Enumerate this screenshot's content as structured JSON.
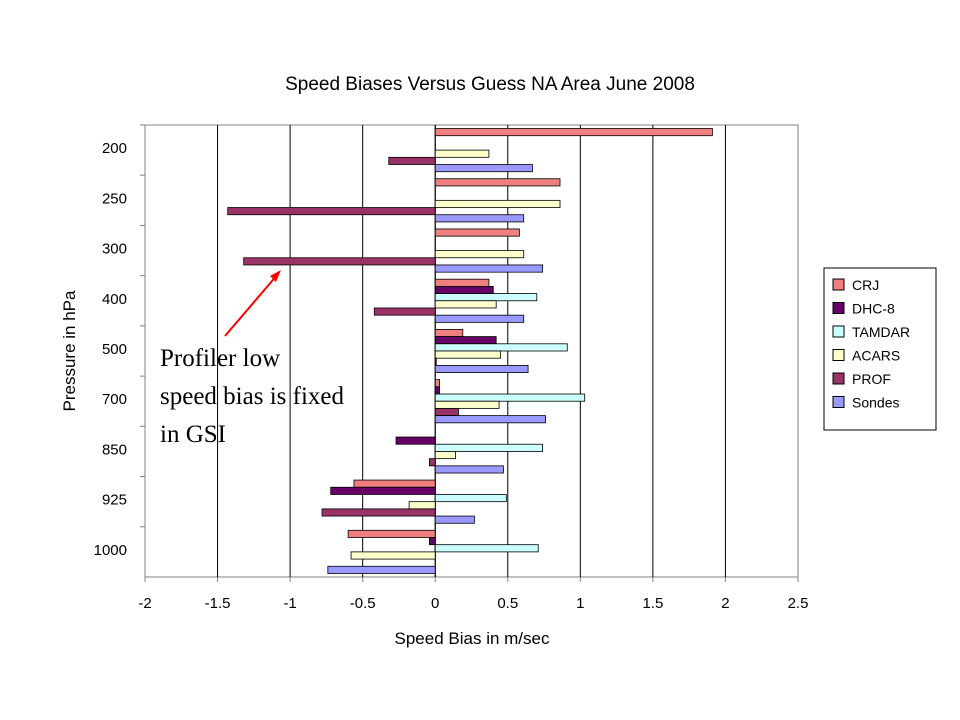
{
  "chart_data": {
    "type": "bar",
    "orientation": "horizontal",
    "title": "Speed Biases Versus Guess NA Area June 2008",
    "xlabel": "Speed Bias in m/sec",
    "ylabel": "Pressure in hPa",
    "xlim": [
      -2,
      2.5
    ],
    "x_ticks": [
      "-2",
      "-1.5",
      "-1",
      "-0.5",
      "0",
      "0.5",
      "1",
      "1.5",
      "2",
      "2.5"
    ],
    "categories": [
      "1000",
      "925",
      "850",
      "700",
      "500",
      "400",
      "300",
      "250",
      "200"
    ],
    "grid": "vertical",
    "legend_position": "right",
    "series": [
      {
        "name": "CRJ",
        "color": "#f08080",
        "values": [
          -0.6,
          -0.56,
          null,
          0.03,
          0.19,
          0.37,
          0.58,
          0.86,
          1.91
        ]
      },
      {
        "name": "DHC-8",
        "color": "#660066",
        "values": [
          -0.04,
          -0.72,
          -0.27,
          0.03,
          0.42,
          0.4,
          null,
          null,
          null
        ]
      },
      {
        "name": "TAMDAR",
        "color": "#ccffff",
        "values": [
          0.71,
          0.49,
          0.74,
          1.03,
          0.91,
          0.7,
          null,
          null,
          null
        ]
      },
      {
        "name": "ACARS",
        "color": "#ffffcc",
        "values": [
          -0.58,
          -0.18,
          0.14,
          0.44,
          0.45,
          0.42,
          0.61,
          0.86,
          0.37
        ]
      },
      {
        "name": "PROF",
        "color": "#993366",
        "values": [
          null,
          -0.78,
          -0.04,
          0.16,
          0.0,
          -0.42,
          -1.32,
          -1.43,
          -0.32
        ]
      },
      {
        "name": "Sondes",
        "color": "#9999ff",
        "values": [
          -0.74,
          0.27,
          0.47,
          0.76,
          0.64,
          0.61,
          0.74,
          0.61,
          0.67
        ]
      }
    ],
    "annotation": {
      "lines": [
        "Profiler low",
        "speed bias is fixed",
        "in GSI"
      ],
      "arrow_color": "#ff0000"
    }
  }
}
